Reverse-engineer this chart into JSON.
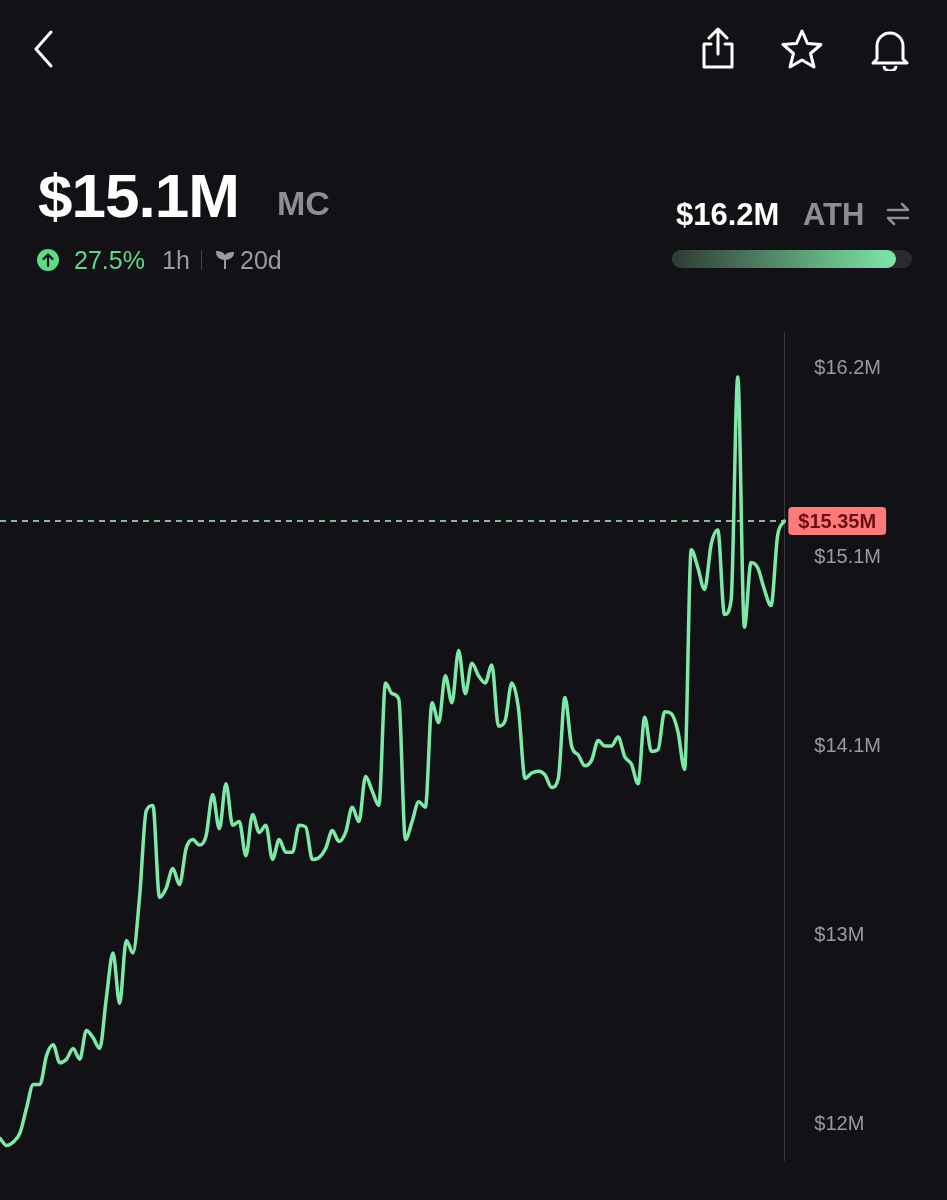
{
  "chart_data": {
    "type": "line",
    "title": "$15.1M",
    "subtitle": "MC",
    "annotations": [
      "27.5%",
      "1h",
      "20d",
      "$16.2M",
      "ATH"
    ],
    "categories": [
      null,
      null,
      null,
      null,
      null,
      null,
      null,
      null,
      null,
      null,
      null,
      null,
      null,
      null,
      null,
      null,
      null,
      null,
      null,
      null,
      null,
      null,
      null,
      null,
      null,
      null,
      null,
      null,
      null,
      null,
      null,
      null,
      null,
      null,
      null,
      null,
      null,
      null,
      null,
      null,
      null,
      null,
      null,
      null,
      null,
      null,
      null,
      null,
      null,
      null,
      null,
      null,
      null,
      null,
      null,
      null,
      null,
      null,
      null,
      null,
      null,
      null,
      null,
      null,
      null,
      null,
      null,
      null,
      null,
      null,
      null,
      null,
      null,
      null,
      null,
      null,
      null,
      null,
      null,
      null,
      null,
      null,
      null,
      null,
      null,
      null,
      null,
      null,
      null,
      null,
      null,
      null,
      null,
      null,
      null,
      null,
      null,
      null,
      null,
      null,
      null,
      null,
      null,
      null,
      null,
      null,
      null,
      null,
      null,
      null,
      null,
      null,
      null,
      null,
      null,
      null,
      null,
      null,
      null
    ],
    "series": [
      {
        "color": "#7ee8a8",
        "values": [
          11.92,
          11.88,
          11.9,
          11.95,
          12.09,
          12.22,
          12.22,
          12.38,
          12.44,
          12.34,
          12.36,
          12.42,
          12.36,
          12.52,
          12.48,
          12.42,
          12.7,
          12.95,
          12.67,
          13.02,
          12.95,
          13.26,
          13.74,
          13.77,
          13.26,
          13.31,
          13.42,
          13.33,
          13.53,
          13.58,
          13.55,
          13.6,
          13.83,
          13.64,
          13.89,
          13.66,
          13.68,
          13.49,
          13.72,
          13.62,
          13.66,
          13.47,
          13.58,
          13.51,
          13.51,
          13.66,
          13.65,
          13.47,
          13.48,
          13.53,
          13.63,
          13.57,
          13.62,
          13.76,
          13.68,
          13.93,
          13.85,
          13.77,
          14.45,
          14.39,
          14.36,
          13.58,
          13.68,
          13.79,
          13.76,
          14.34,
          14.23,
          14.49,
          14.34,
          14.63,
          14.39,
          14.56,
          14.49,
          14.45,
          14.55,
          14.21,
          14.24,
          14.45,
          14.31,
          13.92,
          13.95,
          13.96,
          13.94,
          13.87,
          13.92,
          14.37,
          14.1,
          14.05,
          13.99,
          14.02,
          14.13,
          14.1,
          14.1,
          14.15,
          14.04,
          14.0,
          13.89,
          14.26,
          14.07,
          14.08,
          14.29,
          14.28,
          14.18,
          13.97,
          15.19,
          15.09,
          14.97,
          15.22,
          15.3,
          14.83,
          14.91,
          16.15,
          14.76,
          15.12,
          15.09,
          14.97,
          14.88,
          15.27,
          15.35
        ]
      }
    ],
    "ylim": [
      11.8,
      16.4
    ],
    "yticks": [
      {
        "value": 12,
        "label": "$12M"
      },
      {
        "value": 13.05,
        "label": "$13M"
      },
      {
        "value": 14.1,
        "label": "$14.1M"
      },
      {
        "value": 15.15,
        "label": "$15.1M"
      },
      {
        "value": 16.2,
        "label": "$16.2M"
      }
    ],
    "tick_labels": "y",
    "legend": false,
    "marker": "none",
    "line_style": "solid",
    "ref_lines": [
      {
        "axis": "y",
        "value": 15.35,
        "label": "$15.35M",
        "color": "#b8f0cc",
        "line_style": "dashed"
      }
    ]
  }
}
